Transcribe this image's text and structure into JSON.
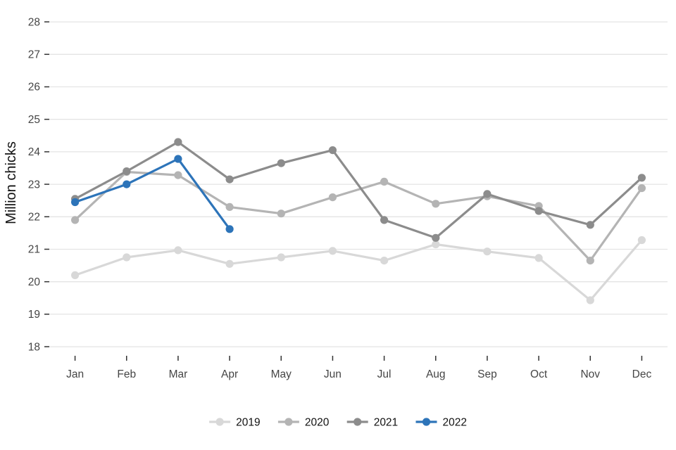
{
  "chart_data": {
    "type": "line",
    "title": "",
    "xlabel": "",
    "ylabel": "Million chicks",
    "categories": [
      "Jan",
      "Feb",
      "Mar",
      "Apr",
      "May",
      "Jun",
      "Jul",
      "Aug",
      "Sep",
      "Oct",
      "Nov",
      "Dec"
    ],
    "y_ticks": [
      18,
      19,
      20,
      21,
      22,
      23,
      24,
      25,
      26,
      27,
      28
    ],
    "ylim": [
      17.72,
      28.37
    ],
    "grid": "horizontal",
    "legend_position": "bottom",
    "grid_color": "#e4e4e4",
    "tick_color": "#454545",
    "tick_mark_color": "#333333",
    "axis_title_color": "#111111",
    "legend_text_color": "#111111",
    "series": [
      {
        "name": "2019",
        "color": "#d8d8d8",
        "values": [
          20.2,
          20.75,
          20.97,
          20.55,
          20.75,
          20.95,
          20.65,
          21.15,
          20.93,
          20.73,
          19.43,
          21.28
        ]
      },
      {
        "name": "2020",
        "color": "#b4b4b4",
        "values": [
          21.9,
          23.38,
          23.28,
          22.3,
          22.1,
          22.6,
          23.08,
          22.4,
          22.63,
          22.33,
          20.65,
          22.88
        ]
      },
      {
        "name": "2021",
        "color": "#8c8c8c",
        "values": [
          22.55,
          23.4,
          24.3,
          23.15,
          23.65,
          24.05,
          21.9,
          21.35,
          22.7,
          22.18,
          21.75,
          23.2
        ]
      },
      {
        "name": "2022",
        "color": "#2d74b9",
        "values": [
          22.45,
          23.0,
          23.78,
          21.62
        ]
      }
    ]
  }
}
